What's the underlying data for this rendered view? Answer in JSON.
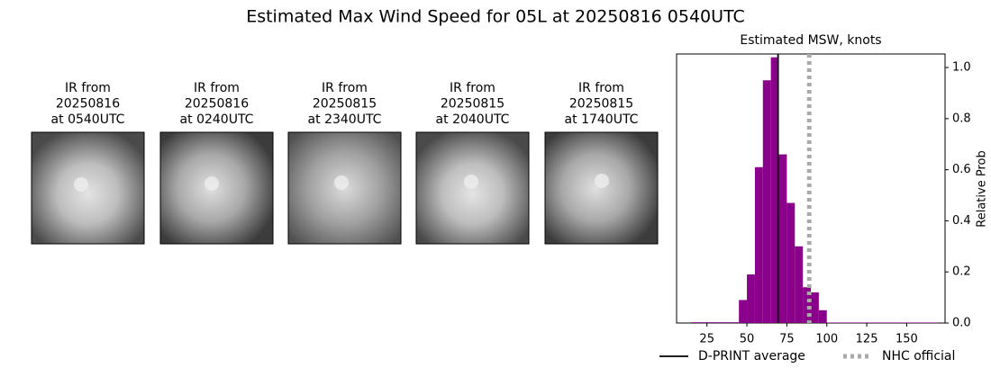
{
  "title": "Estimated Max Wind Speed for 05L at 20250816 0540UTC",
  "panels": [
    {
      "lines": [
        "IR from",
        "20250816",
        "at 0540UTC"
      ]
    },
    {
      "lines": [
        "IR from",
        "20250816",
        "at 0240UTC"
      ]
    },
    {
      "lines": [
        "IR from",
        "20250815",
        "at 2340UTC"
      ]
    },
    {
      "lines": [
        "IR from",
        "20250815",
        "at 2040UTC"
      ]
    },
    {
      "lines": [
        "IR from",
        "20250815",
        "at 1740UTC"
      ]
    }
  ],
  "chart_data": {
    "type": "histogram",
    "title": "Estimated MSW, knots",
    "y_label": "Relative Prob",
    "bins": [
      15,
      20,
      25,
      30,
      35,
      40,
      45,
      50,
      55,
      60,
      65,
      70,
      75,
      80,
      85,
      90,
      95,
      100,
      105,
      110,
      115,
      120,
      125,
      130,
      135,
      140,
      145,
      150,
      155,
      160,
      165,
      170
    ],
    "values": [
      0.003,
      0.003,
      0.003,
      0.003,
      0.003,
      0.003,
      0.09,
      0.19,
      0.61,
      0.95,
      1.04,
      0.66,
      0.47,
      0.3,
      0.14,
      0.12,
      0.05,
      0.002,
      0.002,
      0.002,
      0.002,
      0.002,
      0.002,
      0.002,
      0.002,
      0.002,
      0.002,
      0.002,
      0.002,
      0.002,
      0.002
    ],
    "color": "#8b008b",
    "xlim": [
      6,
      174
    ],
    "ylim": [
      0,
      1.053
    ],
    "xticks": [
      25,
      50,
      75,
      100,
      125,
      150
    ],
    "yticks": [
      {
        "value": 0,
        "label": "0.0"
      },
      {
        "value": 0.2,
        "label": "0.2"
      },
      {
        "value": 0.4,
        "label": "0.4"
      },
      {
        "value": 0.6,
        "label": "0.6"
      },
      {
        "value": 0.8,
        "label": "0.8"
      },
      {
        "value": 1,
        "label": "1.0"
      }
    ],
    "reference_lines": [
      {
        "name": "D-PRINT average",
        "value": 69.5,
        "color": "#000000",
        "style": "solid"
      },
      {
        "name": "NHC official",
        "value": 89,
        "color": "#aaaaaa",
        "style": "dotted"
      }
    ],
    "legend": "bottom"
  }
}
